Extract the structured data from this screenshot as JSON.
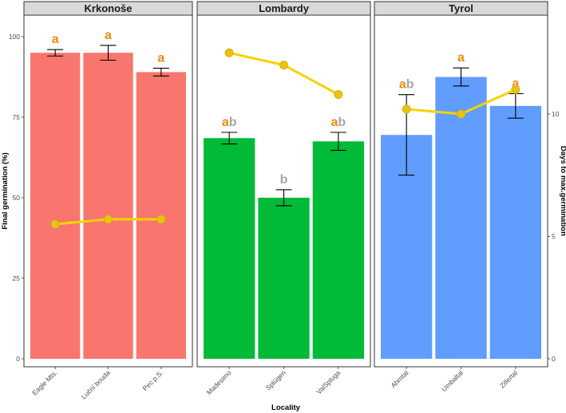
{
  "chart_data": {
    "type": "bar",
    "subtype": "faceted bar with secondary line",
    "xlabel": "Locality",
    "ylabel": "Final germination (%)",
    "ylabel_secondary": "Days to max.germination",
    "ylim": [
      0,
      103
    ],
    "yticks": [
      0,
      25,
      50,
      75,
      100
    ],
    "ylim_secondary": [
      0,
      14.42
    ],
    "yticks_secondary": [
      0,
      5,
      10
    ],
    "line_color": "#f5d300",
    "line_marker_color": "#e8c21a",
    "letter_colors": {
      "a": "#ee8a11",
      "b": "#a6a6a6"
    },
    "panels": [
      {
        "name": "Krkonoše",
        "color": "#f8766d",
        "categories": [
          "Eagle Mts.",
          "Luční bouda",
          "Pec p.S."
        ],
        "values": [
          95,
          95,
          89
        ],
        "errors": [
          1.0,
          2.3,
          1.2
        ],
        "days": [
          5.5,
          5.7,
          5.7
        ],
        "letters": [
          [
            "a"
          ],
          [
            "a"
          ],
          [
            "a"
          ]
        ]
      },
      {
        "name": "Lombardy",
        "color": "#00ba38",
        "categories": [
          "Madesimo",
          "Splügen",
          "ValSpluga"
        ],
        "values": [
          68.5,
          50,
          67.5
        ],
        "errors": [
          1.8,
          2.5,
          2.8
        ],
        "days": [
          12.5,
          12.0,
          10.8
        ],
        "letters": [
          [
            "a",
            "b"
          ],
          [
            "b"
          ],
          [
            "a",
            "b"
          ]
        ]
      },
      {
        "name": "Tyrol",
        "color": "#619cff",
        "categories": [
          "Ahrntal",
          "Umbaltal",
          "Zillertal"
        ],
        "values": [
          69.5,
          87.5,
          78.5
        ],
        "errors": [
          12.5,
          2.8,
          3.8
        ],
        "days": [
          10.2,
          10.0,
          11.0
        ],
        "letters": [
          [
            "a",
            "b"
          ],
          [
            "a"
          ],
          [
            "a"
          ]
        ]
      }
    ]
  }
}
